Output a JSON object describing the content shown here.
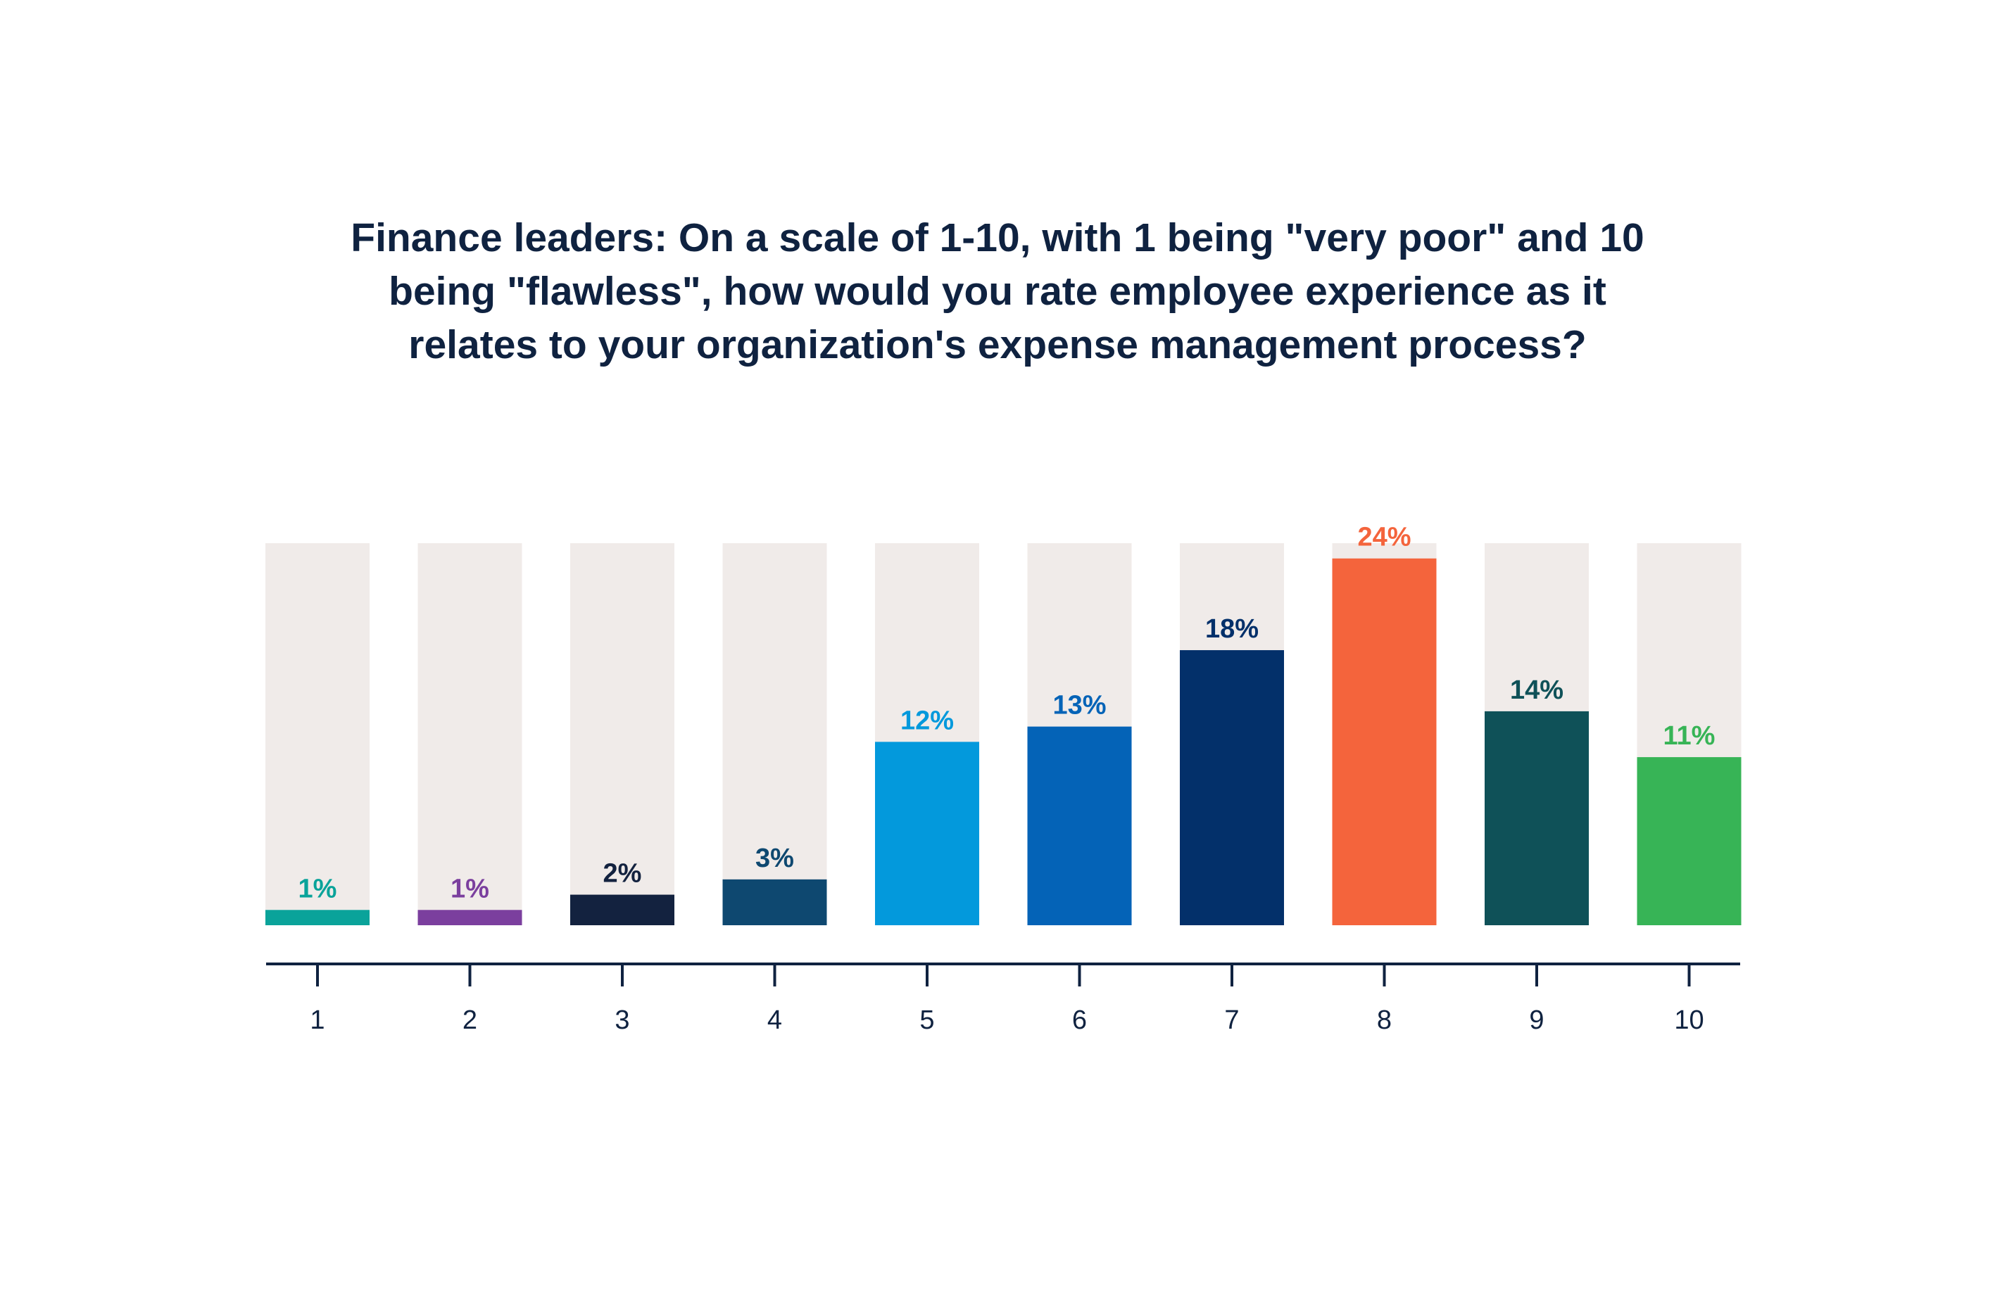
{
  "chart_data": {
    "type": "bar",
    "title_lines": [
      "Finance leaders: On a scale of 1-10, with 1 being \"very poor\" and 10",
      "being \"flawless\", how would you rate employee experience as it",
      "relates to your organization's expense management process?"
    ],
    "categories": [
      "1",
      "2",
      "3",
      "4",
      "5",
      "6",
      "7",
      "8",
      "9",
      "10"
    ],
    "values": [
      1,
      1,
      2,
      3,
      12,
      13,
      18,
      24,
      14,
      11
    ],
    "value_labels": [
      "1%",
      "1%",
      "2%",
      "3%",
      "12%",
      "13%",
      "18%",
      "24%",
      "14%",
      "11%"
    ],
    "unit": "%",
    "ylim": [
      0,
      25
    ],
    "colors": [
      "#0aa39a",
      "#7b3f9e",
      "#13223f",
      "#0e4870",
      "#0399dc",
      "#0463b7",
      "#03306a",
      "#f4643c",
      "#0f5158",
      "#37b456"
    ],
    "background_track_color": "#f0ebe9",
    "axis_color": "#0f2240",
    "grid": false,
    "legend": "none"
  }
}
